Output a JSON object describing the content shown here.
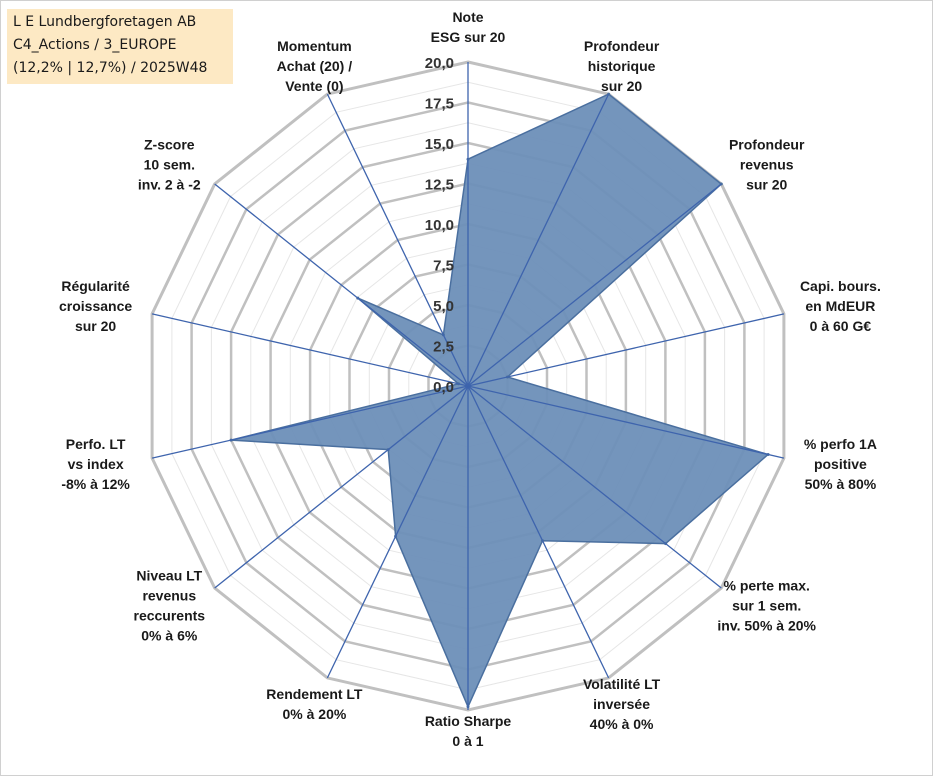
{
  "info_box": {
    "line1": "L E Lundbergforetagen AB",
    "line2": "C4_Actions / 3_EUROPE",
    "line3": "(12,2% | 12,7%) / 2025W48"
  },
  "colors": {
    "fill": "#6d8fb8",
    "stroke": "#4a6f9f",
    "spoke": "#3e64ad",
    "ring": "#c0c0c0",
    "ring_minor": "#e6e6e6",
    "info_bg": "#fde9c4"
  },
  "chart_data": {
    "type": "radar",
    "title": "",
    "rmin": 0,
    "rmax": 20,
    "major_step": 2.5,
    "tick_labels": [
      "0,0",
      "2,5",
      "5,0",
      "7,5",
      "10,0",
      "12,5",
      "15,0",
      "17,5",
      "20,0"
    ],
    "axes": [
      {
        "name": "Note ESG sur 20",
        "lines": [
          "Note",
          "ESG sur 20"
        ],
        "value": 14.0
      },
      {
        "name": "Profondeur historique sur 20",
        "lines": [
          "Profondeur",
          "historique",
          "sur 20"
        ],
        "value": 20.0
      },
      {
        "name": "Profondeur revenus sur 20",
        "lines": [
          "Profondeur",
          "revenus",
          "sur 20"
        ],
        "value": 20.0
      },
      {
        "name": "Capi. bours. en MdEUR 0 à 60 G€",
        "lines": [
          "Capi. bours.",
          "en MdEUR",
          "0 à 60 G€"
        ],
        "value": 2.5
      },
      {
        "name": "% perfo 1A positive 50% à 80%",
        "lines": [
          "% perfo 1A",
          "positive",
          "50% à 80%"
        ],
        "value": 19.0
      },
      {
        "name": "% perte max. sur 1 sem. inv. 50% à 20%",
        "lines": [
          "% perte max.",
          "sur 1 sem.",
          "inv. 50% à 20%"
        ],
        "value": 15.6
      },
      {
        "name": "Volatilité LT inversée 40% à 0%",
        "lines": [
          "Volatilité LT",
          "inversée",
          "40% à 0%"
        ],
        "value": 10.6
      },
      {
        "name": "Ratio Sharpe 0 à 1",
        "lines": [
          "Ratio Sharpe",
          "0 à 1"
        ],
        "value": 19.8
      },
      {
        "name": "Rendement LT 0% à 20%",
        "lines": [
          "Rendement LT",
          "0% à 20%"
        ],
        "value": 10.3
      },
      {
        "name": "Niveau LT revenus reccurents 0% à 6%",
        "lines": [
          "Niveau LT",
          "revenus",
          "reccurents",
          "0% à 6%"
        ],
        "value": 6.3
      },
      {
        "name": "Perfo. LT vs index -8% à 12%",
        "lines": [
          "Perfo. LT",
          "vs index",
          "-8% à 12%"
        ],
        "value": 15.0
      },
      {
        "name": "Régularité croissance sur 20",
        "lines": [
          "Régularité",
          "croissance",
          "sur 20"
        ],
        "value": 0.6
      },
      {
        "name": "Z-score 10 sem. inv. 2 à -2",
        "lines": [
          "Z-score",
          "10 sem.",
          "inv. 2 à -2"
        ],
        "value": 8.7
      },
      {
        "name": "Momentum Achat (20) / Vente (0)",
        "lines": [
          "Momentum",
          "Achat (20) /",
          "Vente (0)"
        ],
        "value": 3.5
      }
    ]
  }
}
